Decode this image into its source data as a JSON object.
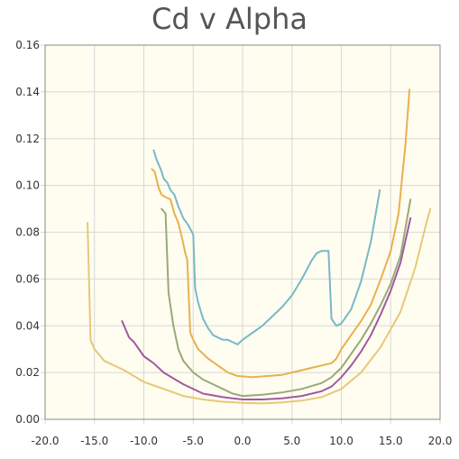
{
  "chart_data": {
    "type": "line",
    "title": "Cd v Alpha",
    "xlabel": "",
    "ylabel": "",
    "xlim": [
      -20,
      20
    ],
    "ylim": [
      0,
      0.16
    ],
    "x_ticks": [
      "-20.0",
      "-15.0",
      "-10.0",
      "-5.0",
      "0.0",
      "5.0",
      "10.0",
      "15.0",
      "20.0"
    ],
    "y_ticks": [
      "0.00",
      "0.02",
      "0.04",
      "0.06",
      "0.08",
      "0.10",
      "0.12",
      "0.14",
      "0.16"
    ],
    "grid": true,
    "plot_background": "#fffdf0",
    "series": [
      {
        "color": "#e6c878",
        "points": [
          [
            -15.7,
            0.084
          ],
          [
            -15.4,
            0.034
          ],
          [
            -15,
            0.03
          ],
          [
            -14,
            0.025
          ],
          [
            -12,
            0.021
          ],
          [
            -10,
            0.016
          ],
          [
            -8,
            0.013
          ],
          [
            -6,
            0.01
          ],
          [
            -4,
            0.0085
          ],
          [
            -2,
            0.0075
          ],
          [
            0,
            0.007
          ],
          [
            2,
            0.0068
          ],
          [
            4,
            0.0072
          ],
          [
            6,
            0.008
          ],
          [
            8,
            0.0095
          ],
          [
            10,
            0.013
          ],
          [
            12,
            0.02
          ],
          [
            14,
            0.031
          ],
          [
            16,
            0.046
          ],
          [
            17.5,
            0.065
          ],
          [
            18.5,
            0.082
          ],
          [
            19,
            0.09
          ]
        ]
      },
      {
        "color": "#a05aa0",
        "points": [
          [
            -12.2,
            0.042
          ],
          [
            -11.5,
            0.035
          ],
          [
            -11,
            0.033
          ],
          [
            -10,
            0.027
          ],
          [
            -9,
            0.024
          ],
          [
            -8,
            0.02
          ],
          [
            -6,
            0.015
          ],
          [
            -4,
            0.011
          ],
          [
            -2,
            0.0095
          ],
          [
            0,
            0.0085
          ],
          [
            2,
            0.0085
          ],
          [
            4,
            0.009
          ],
          [
            6,
            0.01
          ],
          [
            8,
            0.012
          ],
          [
            9,
            0.014
          ],
          [
            10,
            0.018
          ],
          [
            11,
            0.023
          ],
          [
            12,
            0.029
          ],
          [
            13,
            0.036
          ],
          [
            14,
            0.045
          ],
          [
            15,
            0.055
          ],
          [
            16,
            0.067
          ],
          [
            17,
            0.086
          ]
        ]
      },
      {
        "color": "#98aa78",
        "points": [
          [
            -8.2,
            0.09
          ],
          [
            -7.8,
            0.088
          ],
          [
            -7.5,
            0.054
          ],
          [
            -7,
            0.04
          ],
          [
            -6.5,
            0.03
          ],
          [
            -6,
            0.025
          ],
          [
            -5,
            0.02
          ],
          [
            -4,
            0.017
          ],
          [
            -3,
            0.015
          ],
          [
            -2,
            0.013
          ],
          [
            -1,
            0.011
          ],
          [
            0,
            0.01
          ],
          [
            2,
            0.0105
          ],
          [
            4,
            0.0115
          ],
          [
            6,
            0.013
          ],
          [
            8,
            0.0155
          ],
          [
            9,
            0.018
          ],
          [
            10,
            0.022
          ],
          [
            11,
            0.028
          ],
          [
            12,
            0.034
          ],
          [
            13,
            0.041
          ],
          [
            14,
            0.049
          ],
          [
            15,
            0.058
          ],
          [
            16,
            0.07
          ],
          [
            17,
            0.094
          ]
        ]
      },
      {
        "color": "#e8b050",
        "points": [
          [
            -9.2,
            0.107
          ],
          [
            -8.9,
            0.106
          ],
          [
            -8.5,
            0.099
          ],
          [
            -8.2,
            0.096
          ],
          [
            -7.8,
            0.095
          ],
          [
            -7.3,
            0.094
          ],
          [
            -6.9,
            0.088
          ],
          [
            -6.5,
            0.084
          ],
          [
            -6.1,
            0.077
          ],
          [
            -5.8,
            0.071
          ],
          [
            -5.6,
            0.068
          ],
          [
            -5.3,
            0.037
          ],
          [
            -5,
            0.034
          ],
          [
            -4.5,
            0.03
          ],
          [
            -3.5,
            0.026
          ],
          [
            -2.5,
            0.023
          ],
          [
            -1.5,
            0.02
          ],
          [
            -0.5,
            0.0185
          ],
          [
            1,
            0.018
          ],
          [
            2.5,
            0.0185
          ],
          [
            4,
            0.019
          ],
          [
            5,
            0.02
          ],
          [
            6,
            0.021
          ],
          [
            7,
            0.022
          ],
          [
            8,
            0.023
          ],
          [
            9,
            0.024
          ],
          [
            9.5,
            0.026
          ],
          [
            10,
            0.03
          ],
          [
            11,
            0.036
          ],
          [
            12,
            0.042
          ],
          [
            13,
            0.049
          ],
          [
            14,
            0.06
          ],
          [
            15,
            0.072
          ],
          [
            15.8,
            0.088
          ],
          [
            16.5,
            0.118
          ],
          [
            16.9,
            0.141
          ]
        ]
      },
      {
        "color": "#78b8c8",
        "points": [
          [
            -9,
            0.115
          ],
          [
            -8.7,
            0.111
          ],
          [
            -8.5,
            0.109
          ],
          [
            -8.2,
            0.106
          ],
          [
            -8,
            0.103
          ],
          [
            -7.6,
            0.101
          ],
          [
            -7.3,
            0.098
          ],
          [
            -6.9,
            0.096
          ],
          [
            -6.5,
            0.091
          ],
          [
            -6,
            0.086
          ],
          [
            -5.5,
            0.083
          ],
          [
            -5,
            0.079
          ],
          [
            -4.8,
            0.056
          ],
          [
            -4.5,
            0.05
          ],
          [
            -4,
            0.043
          ],
          [
            -3.5,
            0.039
          ],
          [
            -3,
            0.036
          ],
          [
            -2.5,
            0.035
          ],
          [
            -2,
            0.034
          ],
          [
            -1.5,
            0.034
          ],
          [
            -1,
            0.033
          ],
          [
            -0.5,
            0.032
          ],
          [
            0,
            0.034
          ],
          [
            1,
            0.037
          ],
          [
            2,
            0.04
          ],
          [
            3,
            0.044
          ],
          [
            4,
            0.048
          ],
          [
            5,
            0.053
          ],
          [
            6,
            0.06
          ],
          [
            7,
            0.068
          ],
          [
            7.5,
            0.071
          ],
          [
            8,
            0.072
          ],
          [
            8.7,
            0.072
          ],
          [
            9,
            0.043
          ],
          [
            9.5,
            0.04
          ],
          [
            10,
            0.041
          ],
          [
            11,
            0.047
          ],
          [
            12,
            0.059
          ],
          [
            13,
            0.076
          ],
          [
            13.9,
            0.098
          ]
        ]
      }
    ]
  }
}
